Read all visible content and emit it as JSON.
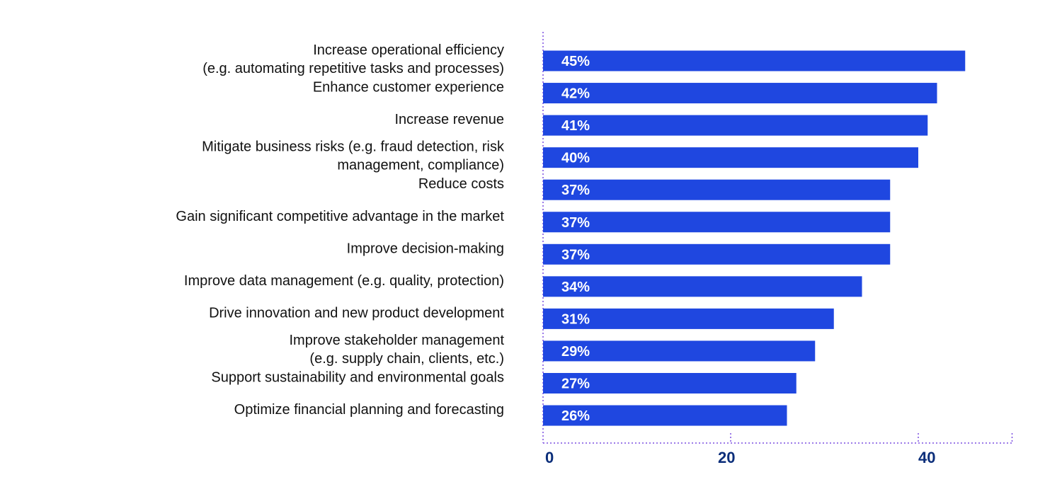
{
  "chart_data": {
    "type": "bar",
    "orientation": "horizontal",
    "categories": [
      [
        "Increase operational efficiency",
        "(e.g. automating repetitive tasks and processes)"
      ],
      [
        "Enhance customer experience"
      ],
      [
        "Increase revenue"
      ],
      [
        "Mitigate business risks (e.g. fraud detection, risk",
        "management, compliance)"
      ],
      [
        "Reduce costs"
      ],
      [
        "Gain significant competitive advantage in the market"
      ],
      [
        "Improve decision-making"
      ],
      [
        "Improve data management (e.g. quality, protection)"
      ],
      [
        "Drive innovation and new product development"
      ],
      [
        "Improve stakeholder management",
        "(e.g. supply chain, clients, etc.)"
      ],
      [
        "Support sustainability and environmental goals"
      ],
      [
        "Optimize financial planning and forecasting"
      ]
    ],
    "values": [
      45,
      42,
      41,
      40,
      37,
      37,
      37,
      34,
      31,
      29,
      27,
      26
    ],
    "data_labels": [
      "45%",
      "42%",
      "41%",
      "40%",
      "37%",
      "37%",
      "37%",
      "34%",
      "31%",
      "29%",
      "27%",
      "26%"
    ],
    "xlim": [
      0,
      50
    ],
    "xticks": [
      0,
      20,
      40
    ],
    "xtick_labels": [
      "0",
      "20",
      "40"
    ],
    "grid": false,
    "colors": {
      "bar": "#1f47e0",
      "axis": "#7b4fe0",
      "tick_label": "#0b2e7a"
    }
  }
}
